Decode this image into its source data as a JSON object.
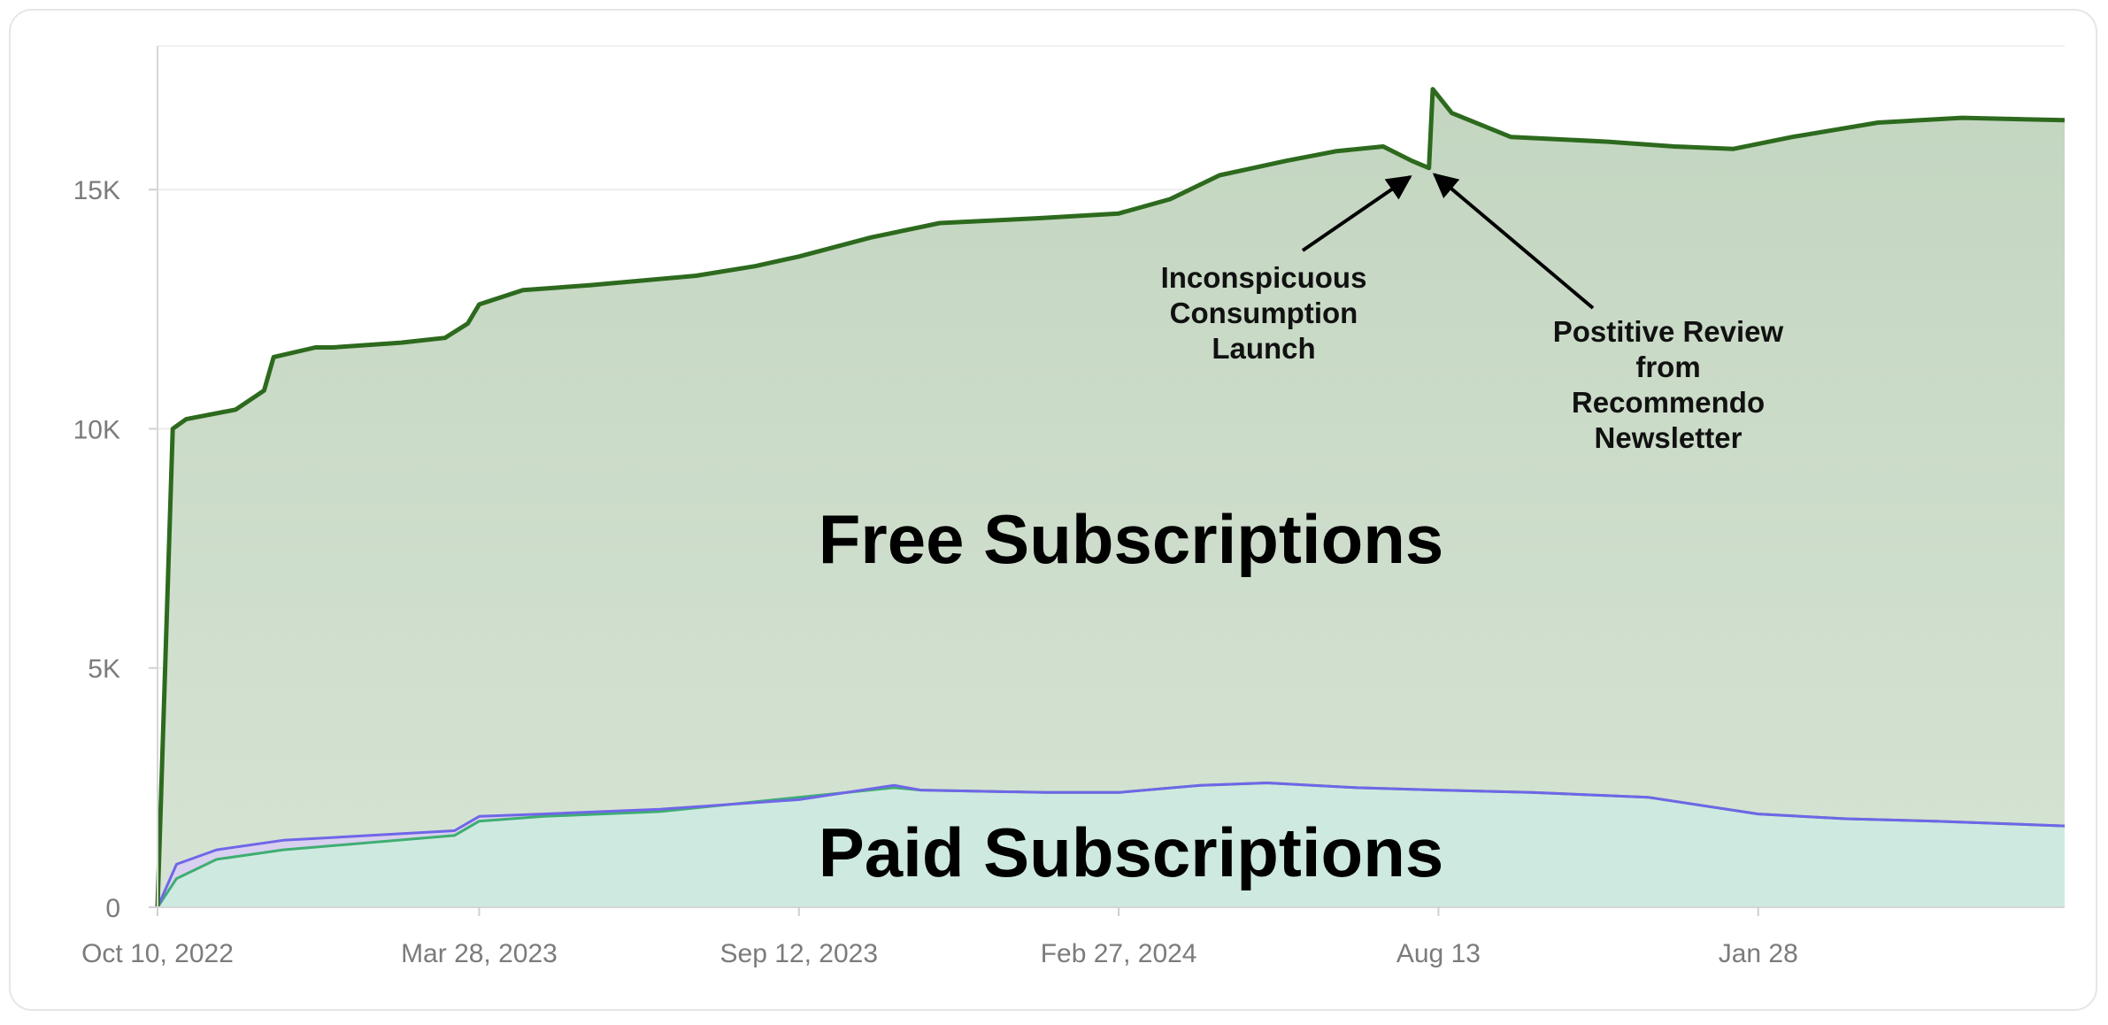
{
  "chart_data": {
    "type": "area",
    "y_ticks": [
      {
        "label": "0",
        "value": 0
      },
      {
        "label": "5K",
        "value": 5000
      },
      {
        "label": "10K",
        "value": 10000
      },
      {
        "label": "15K",
        "value": 15000
      }
    ],
    "x_ticks": [
      {
        "label": "Oct 10, 2022",
        "date": "2022-10-10"
      },
      {
        "label": "Mar 28, 2023",
        "date": "2023-03-28"
      },
      {
        "label": "Sep 12, 2023",
        "date": "2023-09-12"
      },
      {
        "label": "Feb 27, 2024",
        "date": "2024-02-27"
      },
      {
        "label": "Aug 13",
        "date": "2024-08-13"
      },
      {
        "label": "Jan 28",
        "date": "2025-01-28"
      }
    ],
    "xlim": [
      "2022-10-10",
      "2025-07-08"
    ],
    "ylim": [
      0,
      18000
    ],
    "grid": true,
    "series": [
      {
        "name": "Free Subscriptions",
        "color": "#2d6a1e",
        "fill": "#c6d8c3",
        "x": [
          "2022-10-10",
          "2022-10-18",
          "2022-10-25",
          "2022-11-20",
          "2022-12-05",
          "2022-12-10",
          "2023-01-01",
          "2023-01-10",
          "2023-02-15",
          "2023-03-10",
          "2023-03-22",
          "2023-03-28",
          "2023-04-20",
          "2023-05-25",
          "2023-07-20",
          "2023-08-20",
          "2023-09-12",
          "2023-10-20",
          "2023-11-25",
          "2024-01-15",
          "2024-02-27",
          "2024-03-25",
          "2024-04-20",
          "2024-05-25",
          "2024-06-20",
          "2024-07-15",
          "2024-07-30",
          "2024-08-08",
          "2024-08-10",
          "2024-08-20",
          "2024-09-20",
          "2024-11-10",
          "2024-12-15",
          "2025-01-15",
          "2025-02-15",
          "2025-04-01",
          "2025-05-15",
          "2025-07-08"
        ],
        "values": [
          0,
          10000,
          10200,
          10400,
          10800,
          11500,
          11700,
          11700,
          11800,
          11900,
          12200,
          12600,
          12900,
          13000,
          13200,
          13400,
          13600,
          14000,
          14300,
          14400,
          14500,
          14800,
          15300,
          15600,
          15800,
          15900,
          15600,
          15450,
          17100,
          16600,
          16100,
          16000,
          15900,
          15850,
          16100,
          16400,
          16500,
          16450
        ]
      },
      {
        "name": "Paid Subscriptions",
        "color": "#6f66e8",
        "fill": "#d8ccf3",
        "x": [
          "2022-10-10",
          "2022-10-20",
          "2022-11-10",
          "2022-12-15",
          "2023-03-15",
          "2023-03-28",
          "2023-05-01",
          "2023-07-01",
          "2023-09-12",
          "2023-11-01",
          "2023-11-15",
          "2024-01-20",
          "2024-02-27",
          "2024-04-10",
          "2024-05-15",
          "2024-07-01",
          "2024-08-13",
          "2024-10-01",
          "2024-12-01",
          "2025-01-28",
          "2025-03-15",
          "2025-05-01",
          "2025-07-08"
        ],
        "values": [
          0,
          900,
          1200,
          1400,
          1600,
          1900,
          1950,
          2050,
          2250,
          2550,
          2450,
          2400,
          2400,
          2550,
          2600,
          2500,
          2450,
          2400,
          2300,
          1950,
          1850,
          1800,
          1700
        ]
      },
      {
        "color": "#3fae72",
        "fill": "#cdeedd",
        "x": [
          "2022-10-10",
          "2022-10-20",
          "2022-11-10",
          "2022-12-15",
          "2023-03-15",
          "2023-03-28",
          "2023-05-01",
          "2023-07-01",
          "2023-09-12",
          "2023-11-01",
          "2023-11-15",
          "2024-01-20",
          "2024-02-27",
          "2024-04-10",
          "2024-05-15",
          "2024-07-01",
          "2024-08-13",
          "2024-10-01",
          "2024-12-01",
          "2025-01-28",
          "2025-03-15",
          "2025-05-01",
          "2025-07-08"
        ],
        "values": [
          0,
          600,
          1000,
          1200,
          1500,
          1800,
          1900,
          2000,
          2300,
          2500,
          2450,
          2400,
          2400,
          2550,
          2600,
          2500,
          2450,
          2400,
          2300,
          1950,
          1850,
          1800,
          1700
        ]
      }
    ],
    "annotations": [
      {
        "lines": [
          "Inconspicuous",
          "Consumption",
          "Launch"
        ],
        "arrow_to": {
          "date": "2024-07-30",
          "value": 15600
        }
      },
      {
        "lines": [
          "Postitive Review",
          "from",
          "Recommendo",
          "Newsletter"
        ],
        "arrow_to": {
          "date": "2024-08-10",
          "value": 15500
        }
      }
    ],
    "area_labels": [
      "Free Subscriptions",
      "Paid Subscriptions"
    ]
  }
}
